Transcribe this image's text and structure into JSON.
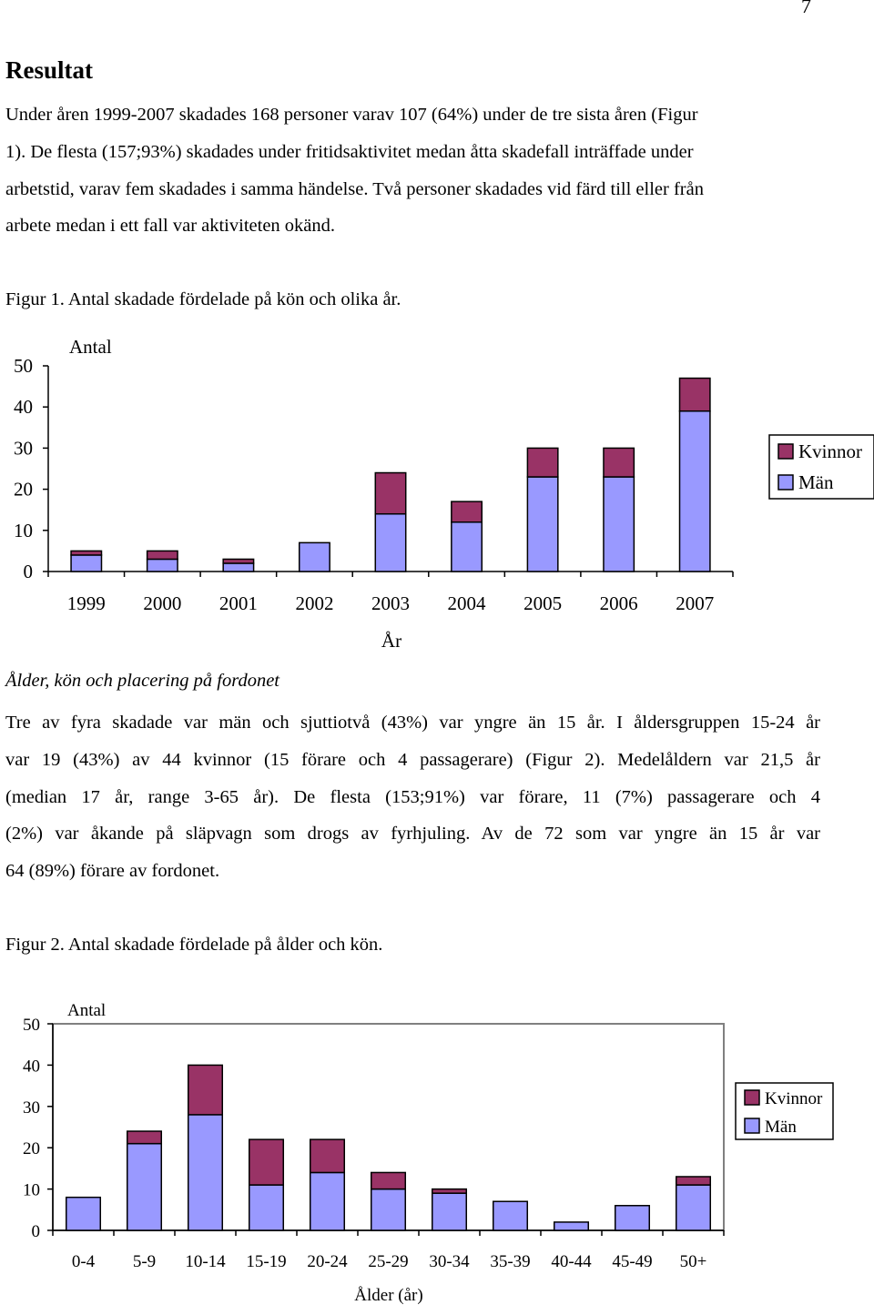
{
  "page_number": "7",
  "heading": "Resultat",
  "paragraph1": [
    "Under åren 1999-2007 skadades 168 personer varav 107 (64%) under de tre sista åren (Figur",
    "1). De flesta (157;93%) skadades under fritidsaktivitet medan åtta skadefall inträffade under",
    "arbetstid, varav fem skadades i samma händelse. Två personer skadades vid färd till eller från",
    "arbete medan i ett fall var aktiviteten okänd."
  ],
  "figure1_caption": "Figur 1. Antal skadade fördelade på kön och olika år.",
  "subheading": "Ålder, kön och placering på fordonet",
  "paragraph2": [
    "Tre av fyra skadade var män och sjuttiotvå (43%) var yngre än 15 år. I åldersgruppen 15-24 år",
    "var 19 (43%) av 44 kvinnor (15 förare och 4 passagerare) (Figur 2). Medelåldern var 21,5 år",
    "(median 17 år, range 3-65 år). De flesta (153;91%) var förare, 11 (7%) passagerare och 4",
    "(2%) var åkande på släpvagn som drogs av fyrhjuling. Av de 72 som var yngre än 15 år var",
    "64 (89%) förare av fordonet."
  ],
  "figure2_caption": "Figur 2. Antal skadade fördelade på ålder och kön.",
  "colors": {
    "man": "#9999ff",
    "kvinnor": "#993366",
    "axis": "#000000",
    "frame": "#808080"
  },
  "chart_data": [
    {
      "type": "bar",
      "stacked": true,
      "categories": [
        "1999",
        "2000",
        "2001",
        "2002",
        "2003",
        "2004",
        "2005",
        "2006",
        "2007"
      ],
      "series": [
        {
          "name": "Män",
          "values": [
            4,
            3,
            2,
            7,
            14,
            12,
            23,
            23,
            39
          ]
        },
        {
          "name": "Kvinnor",
          "values": [
            1,
            2,
            1,
            0,
            10,
            5,
            7,
            7,
            8
          ]
        }
      ],
      "title": "",
      "ylabel": "Antal",
      "xlabel": "År",
      "ylim": [
        0,
        50
      ],
      "yticks": [
        "0",
        "10",
        "20",
        "30",
        "40",
        "50"
      ],
      "legend": [
        "Kvinnor",
        "Män"
      ],
      "legend_position": "right",
      "grid": false
    },
    {
      "type": "bar",
      "stacked": true,
      "categories": [
        "0-4",
        "5-9",
        "10-14",
        "15-19",
        "20-24",
        "25-29",
        "30-34",
        "35-39",
        "40-44",
        "45-49",
        "50+"
      ],
      "series": [
        {
          "name": "Män",
          "values": [
            8,
            21,
            28,
            11,
            14,
            10,
            9,
            7,
            2,
            6,
            11
          ]
        },
        {
          "name": "Kvinnor",
          "values": [
            0,
            3,
            12,
            11,
            8,
            4,
            1,
            0,
            0,
            0,
            2
          ]
        }
      ],
      "title": "",
      "ylabel": "Antal",
      "xlabel": "Ålder (år)",
      "ylim": [
        0,
        50
      ],
      "yticks": [
        "0",
        "10",
        "20",
        "30",
        "40",
        "50"
      ],
      "legend": [
        "Kvinnor",
        "Män"
      ],
      "legend_position": "right",
      "grid": false
    }
  ]
}
